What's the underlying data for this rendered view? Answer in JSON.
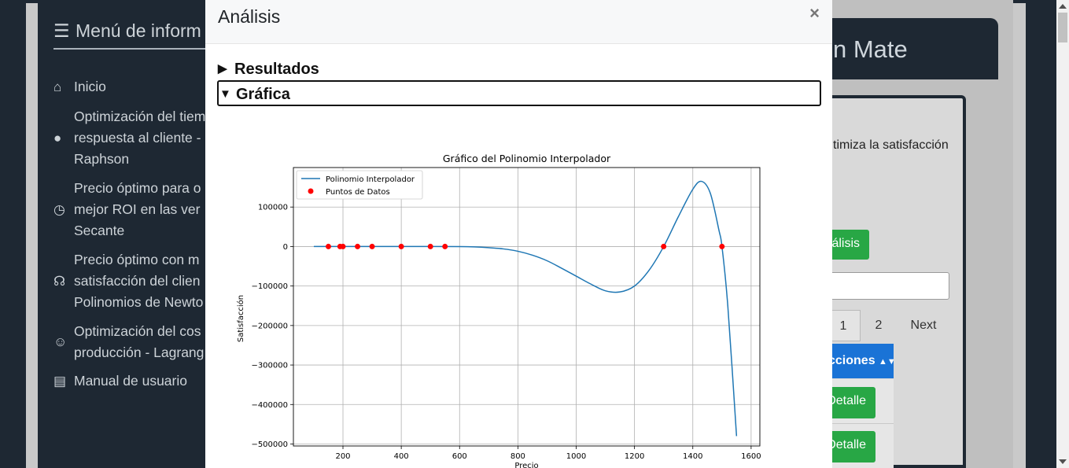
{
  "sidebar": {
    "title": "Menú de inform",
    "items": [
      {
        "icon": "home-icon",
        "glyph": "⌂",
        "label": "Inicio"
      },
      {
        "icon": "user-icon",
        "glyph": "●",
        "label": "Optimización del tiem\nrespuesta al cliente -\nRaphson"
      },
      {
        "icon": "clock-icon",
        "glyph": "◷",
        "label": "Precio óptimo para o\nmejor ROI en las ver\nSecante"
      },
      {
        "icon": "headset-icon",
        "glyph": "☊",
        "label": "Precio óptimo con m\nsatisfacción del clien\nPolinomios de Newto"
      },
      {
        "icon": "smile-icon",
        "glyph": "☺",
        "label": "Optimización del cos\nproducción - Lagrang"
      },
      {
        "icon": "book-icon",
        "glyph": "▤",
        "label": "Manual de usuario"
      }
    ]
  },
  "background": {
    "header_text": "n Mate",
    "description": "timiza la satisfacción",
    "analysis_button": "álisis",
    "pagination": {
      "page1": "1",
      "page2": "2",
      "next": "Next"
    },
    "table_header": "cciones",
    "detail_button": "Detalle"
  },
  "modal": {
    "title": "Análisis",
    "close": "×",
    "sections": [
      {
        "label": "Resultados",
        "open": false
      },
      {
        "label": "Gráfica",
        "open": true
      }
    ]
  },
  "chart_data": {
    "type": "line",
    "title": "Gráfico del Polinomio Interpolador",
    "xlabel": "Precio",
    "ylabel": "Satisfacción",
    "xlim": [
      30,
      1630
    ],
    "ylim": [
      -505000,
      200000
    ],
    "xticks": [
      200,
      400,
      600,
      800,
      1000,
      1200,
      1400,
      1600
    ],
    "yticks": [
      100000,
      0,
      -100000,
      -200000,
      -300000,
      -400000,
      -500000
    ],
    "ytick_labels": [
      "100000",
      "0",
      "−100000",
      "−200000",
      "−300000",
      "−400000",
      "−500000"
    ],
    "grid": true,
    "legend_position": "top-left",
    "series": [
      {
        "name": "Polinomio Interpolador",
        "kind": "line",
        "color": "#1f77b4",
        "x": [
          100,
          300,
          500,
          600,
          650,
          700,
          750,
          800,
          850,
          900,
          950,
          1000,
          1050,
          1100,
          1150,
          1200,
          1250,
          1300,
          1350,
          1400,
          1430,
          1460,
          1490,
          1500,
          1520,
          1550
        ],
        "y": [
          0,
          0,
          0,
          -200,
          -1000,
          -3000,
          -6000,
          -12000,
          -22000,
          -36000,
          -55000,
          -75000,
          -95000,
          -112000,
          -115000,
          -100000,
          -60000,
          0,
          75000,
          145000,
          165000,
          135000,
          40000,
          0,
          -150000,
          -480000
        ]
      },
      {
        "name": "Puntos de Datos",
        "kind": "scatter",
        "color": "#ff0000",
        "x": [
          150,
          190,
          200,
          250,
          300,
          400,
          500,
          550,
          1300,
          1500
        ],
        "y": [
          0,
          0,
          0,
          0,
          0,
          0,
          0,
          0,
          0,
          0
        ]
      }
    ]
  }
}
